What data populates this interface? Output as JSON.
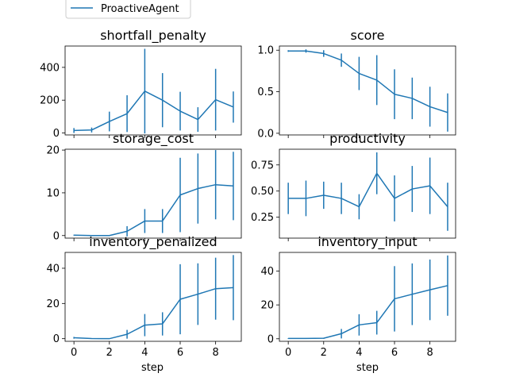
{
  "chart_data": {
    "type": "line",
    "legend": {
      "entries": [
        "ProactiveAgent"
      ],
      "placement": "top-left"
    },
    "xlabel": "step",
    "series_color": "#1f77b4",
    "x": [
      0,
      1,
      2,
      3,
      4,
      5,
      6,
      7,
      8,
      9
    ],
    "xticks": [
      0,
      2,
      4,
      6,
      8
    ],
    "panels": [
      {
        "title": "shortfall_penalty",
        "ylim": [
          -12,
          530
        ],
        "yticks": [
          0,
          200,
          400
        ],
        "series": [
          {
            "name": "ProactiveAgent",
            "values": [
              15,
              18,
              70,
              118,
              255,
              200,
              133,
              82,
              203,
              158
            ],
            "error": [
              15,
              15,
              60,
              112,
              258,
              165,
              118,
              75,
              188,
              95
            ]
          }
        ]
      },
      {
        "title": "score",
        "ylim": [
          -0.02,
          1.05
        ],
        "yticks": [
          0.0,
          0.5,
          1.0
        ],
        "series": [
          {
            "name": "ProactiveAgent",
            "values": [
              0.99,
              0.99,
              0.96,
              0.88,
              0.72,
              0.64,
              0.47,
              0.42,
              0.32,
              0.25
            ],
            "error": [
              0.01,
              0.02,
              0.04,
              0.08,
              0.2,
              0.3,
              0.3,
              0.25,
              0.24,
              0.23
            ]
          }
        ]
      },
      {
        "title": "storage_cost",
        "ylim": [
          -0.6,
          20.2
        ],
        "yticks": [
          0,
          10,
          20
        ],
        "series": [
          {
            "name": "ProactiveAgent",
            "values": [
              0.1,
              0.0,
              0.0,
              1.0,
              3.4,
              3.4,
              9.5,
              11.0,
              11.9,
              11.6
            ],
            "error": [
              0.1,
              0.0,
              0.0,
              1.2,
              2.8,
              2.8,
              8.7,
              8.2,
              8.1,
              8.0
            ]
          }
        ]
      },
      {
        "title": "productivity",
        "ylim": [
          0.05,
          0.9
        ],
        "yticks": [
          0.25,
          0.5,
          0.75
        ],
        "series": [
          {
            "name": "ProactiveAgent",
            "values": [
              0.43,
              0.43,
              0.46,
              0.43,
              0.35,
              0.67,
              0.43,
              0.52,
              0.55,
              0.35
            ],
            "error": [
              0.15,
              0.17,
              0.13,
              0.15,
              0.12,
              0.2,
              0.22,
              0.22,
              0.27,
              0.23
            ]
          }
        ]
      },
      {
        "title": "inventory_penalized",
        "ylim": [
          -1.5,
          49
        ],
        "yticks": [
          0,
          20,
          40
        ],
        "series": [
          {
            "name": "ProactiveAgent",
            "values": [
              0.5,
              0.1,
              0.0,
              2.5,
              7.7,
              8.4,
              22.4,
              25.3,
              28.4,
              29.0
            ],
            "error": [
              0.5,
              0.1,
              0.0,
              2.5,
              6.3,
              6.6,
              19.9,
              17.5,
              17.6,
              18.5
            ]
          }
        ]
      },
      {
        "title": "inventory_input",
        "ylim": [
          -1.5,
          51
        ],
        "yticks": [
          0,
          20,
          40
        ],
        "series": [
          {
            "name": "ProactiveAgent",
            "values": [
              0.2,
              0.2,
              0.3,
              3.0,
              8.2,
              9.5,
              23.6,
              26.3,
              28.9,
              31.4
            ],
            "error": [
              0.2,
              0.2,
              0.3,
              2.8,
              6.3,
              7.0,
              19.3,
              18.2,
              17.9,
              17.8
            ]
          }
        ]
      }
    ]
  }
}
